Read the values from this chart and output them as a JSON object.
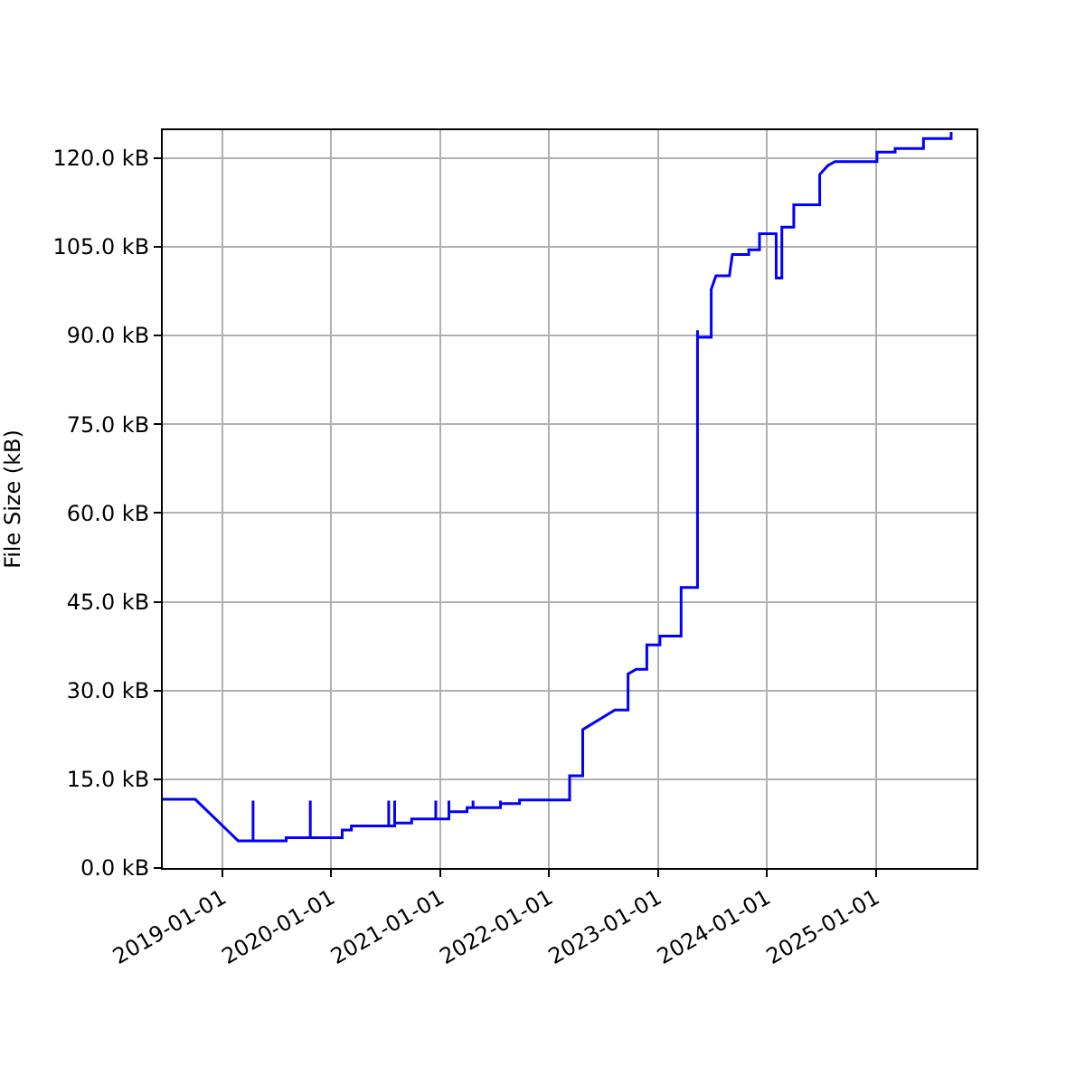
{
  "chart_data": {
    "type": "line",
    "ylabel": "File Size (kB)",
    "grid": true,
    "marker": "none",
    "line_style": "solid",
    "x": [
      "2018-06-15",
      "2018-10-02",
      "2019-02-23",
      "2019-04-14",
      "2019-04-14",
      "2019-04-14",
      "2019-08-03",
      "2019-08-03",
      "2019-10-23",
      "2019-10-23",
      "2019-10-23",
      "2020-02-07",
      "2020-02-07",
      "2020-03-09",
      "2020-03-09",
      "2020-07-12",
      "2020-07-12",
      "2020-07-12",
      "2020-08-01",
      "2020-08-01",
      "2020-08-01",
      "2020-09-27",
      "2020-09-27",
      "2020-12-17",
      "2020-12-17",
      "2020-12-17",
      "2021-01-30",
      "2021-01-30",
      "2021-01-30",
      "2021-04-01",
      "2021-04-01",
      "2021-04-21",
      "2021-04-21",
      "2021-04-21",
      "2021-07-22",
      "2021-07-22",
      "2021-07-22",
      "2021-09-24",
      "2021-09-24",
      "2022-03-11",
      "2022-03-11",
      "2022-04-24",
      "2022-04-24",
      "2022-08-10",
      "2022-09-23",
      "2022-09-23",
      "2022-10-20",
      "2022-11-25",
      "2022-11-25",
      "2023-01-08",
      "2023-01-08",
      "2023-03-20",
      "2023-03-20",
      "2023-05-14",
      "2023-05-14",
      "2023-05-14",
      "2023-06-29",
      "2023-06-29",
      "2023-07-15",
      "2023-08-29",
      "2023-09-08",
      "2023-11-02",
      "2023-11-02",
      "2023-12-08",
      "2023-12-08",
      "2024-02-02",
      "2024-02-02",
      "2024-02-21",
      "2024-02-21",
      "2024-04-01",
      "2024-04-01",
      "2024-06-27",
      "2024-06-27",
      "2024-07-24",
      "2024-08-17",
      "2025-01-05",
      "2025-01-05",
      "2025-03-07",
      "2025-03-07",
      "2025-06-10",
      "2025-06-10",
      "2025-09-11",
      "2025-09-11"
    ],
    "series": [
      {
        "color": "#0000ff",
        "values": [
          11.6,
          11.6,
          4.6,
          4.6,
          11.4,
          4.6,
          4.6,
          5.1,
          5.1,
          11.4,
          5.1,
          5.1,
          6.4,
          6.4,
          7.1,
          7.1,
          11.4,
          7.1,
          7.1,
          11.4,
          7.6,
          7.6,
          8.3,
          8.3,
          11.4,
          8.3,
          8.3,
          11.4,
          9.5,
          9.5,
          10.2,
          10.2,
          11.4,
          10.2,
          10.2,
          11.4,
          10.9,
          10.9,
          11.5,
          11.5,
          15.6,
          15.6,
          23.4,
          26.7,
          26.7,
          32.8,
          33.6,
          33.6,
          37.7,
          37.7,
          39.2,
          39.2,
          47.4,
          47.4,
          90.9,
          89.7,
          89.7,
          97.8,
          100.1,
          100.1,
          103.7,
          103.7,
          104.5,
          104.5,
          107.2,
          107.2,
          99.7,
          99.7,
          108.3,
          108.3,
          112.1,
          112.1,
          117.2,
          118.7,
          119.4,
          119.4,
          121.0,
          121.0,
          121.6,
          121.6,
          123.3,
          123.3,
          124.4
        ]
      }
    ],
    "xlim": [
      "2018-06-15",
      "2025-12-05"
    ],
    "xticks": [
      "2019-01-01",
      "2020-01-01",
      "2021-01-01",
      "2022-01-01",
      "2023-01-01",
      "2024-01-01",
      "2025-01-01"
    ],
    "ylim": [
      0,
      124.7
    ],
    "yticks": [
      {
        "value": 0,
        "label": "0.0 kB"
      },
      {
        "value": 15,
        "label": "15.0 kB"
      },
      {
        "value": 30,
        "label": "30.0 kB"
      },
      {
        "value": 45,
        "label": "45.0 kB"
      },
      {
        "value": 60,
        "label": "60.0 kB"
      },
      {
        "value": 75,
        "label": "75.0 kB"
      },
      {
        "value": 90,
        "label": "90.0 kB"
      },
      {
        "value": 105,
        "label": "105.0 kB"
      },
      {
        "value": 120,
        "label": "120.0 kB"
      }
    ]
  }
}
